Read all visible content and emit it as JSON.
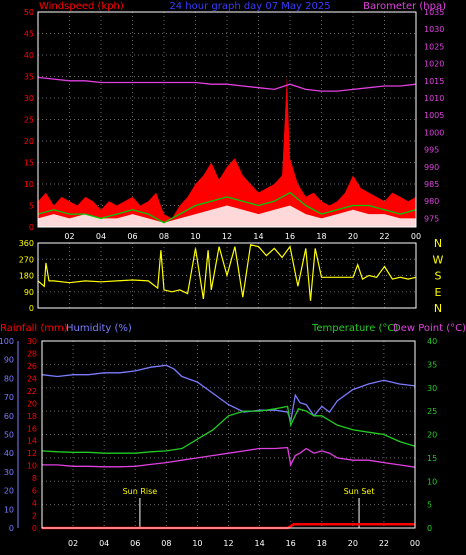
{
  "header": {
    "left_label": "Windspeed (kph)",
    "title": "24 hour graph day  07 May 2025",
    "right_label": "Barometer (hpa)"
  },
  "colors": {
    "wind": "#ff0000",
    "gust": "#ffffff",
    "avg_wind": "#00cc00",
    "barometer": "#e040e0",
    "direction": "#ffff00",
    "humidity": "#7b7bff",
    "temperature": "#22cc22",
    "dewpoint": "#e040e0",
    "rainfall": "#ff0000",
    "grid": "#666666",
    "frame": "#ffffff"
  },
  "chart_data": [
    {
      "type": "line",
      "name": "wind",
      "title": "24 hour graph day  07 May 2025",
      "ylabel": "Windspeed (kph)",
      "y2label": "Barometer (hpa)",
      "ylim": [
        0,
        50
      ],
      "yticks": [
        0,
        5,
        10,
        15,
        20,
        25,
        30,
        35,
        40,
        45,
        50
      ],
      "y2lim": [
        972.5,
        1035
      ],
      "y2ticks": [
        975,
        980,
        985,
        990,
        995,
        1000,
        1005,
        1010,
        1015,
        1020,
        1025,
        1030,
        1035
      ],
      "xlim": [
        0,
        24
      ],
      "xticks": [
        "02",
        "04",
        "06",
        "08",
        "10",
        "12",
        "14",
        "16",
        "18",
        "20",
        "22",
        "00"
      ],
      "grid": true,
      "series": [
        {
          "id": "windspeed",
          "style": "fill",
          "x": [
            0,
            0.5,
            1,
            1.5,
            2,
            2.5,
            3,
            3.5,
            4,
            4.5,
            5,
            5.5,
            6,
            6.5,
            7,
            7.5,
            8,
            8.5,
            9,
            9.5,
            10,
            10.5,
            11,
            11.5,
            12,
            12.5,
            13,
            13.5,
            14,
            14.5,
            15,
            15.5,
            15.8,
            16,
            16.5,
            17,
            17.5,
            18,
            18.5,
            19,
            19.5,
            20,
            20.5,
            21,
            21.5,
            22,
            22.5,
            23,
            23.5,
            24
          ],
          "y": [
            6,
            8,
            5,
            7,
            6,
            5,
            7,
            6,
            4,
            6,
            5,
            6,
            7,
            5,
            6,
            8,
            3,
            2,
            5,
            7,
            10,
            12,
            15,
            11,
            14,
            16,
            12,
            10,
            8,
            9,
            10,
            12,
            35,
            16,
            10,
            7,
            8,
            6,
            5,
            6,
            8,
            12,
            9,
            8,
            7,
            6,
            8,
            7,
            6,
            7
          ]
        },
        {
          "id": "gust",
          "style": "fill",
          "x": [
            0,
            1,
            2,
            3,
            4,
            5,
            6,
            7,
            8,
            9,
            10,
            11,
            12,
            13,
            14,
            15,
            16,
            17,
            18,
            19,
            20,
            21,
            22,
            23,
            24
          ],
          "y": [
            2,
            3,
            2,
            3,
            2,
            2,
            3,
            2,
            1,
            2,
            3,
            4,
            5,
            4,
            3,
            4,
            5,
            3,
            2,
            3,
            4,
            3,
            3,
            2,
            2
          ]
        },
        {
          "id": "avg_wind",
          "style": "line",
          "x": [
            0,
            1,
            2,
            3,
            4,
            5,
            6,
            7,
            8,
            9,
            10,
            11,
            12,
            13,
            14,
            15,
            16,
            17,
            18,
            19,
            20,
            21,
            22,
            23,
            24
          ],
          "y": [
            3,
            4,
            3,
            3,
            2,
            3,
            4,
            3,
            1,
            3,
            5,
            6,
            7,
            6,
            5,
            6,
            8,
            5,
            3,
            4,
            5,
            5,
            4,
            3,
            4
          ]
        },
        {
          "id": "barometer",
          "axis": "y2",
          "x": [
            0,
            1,
            2,
            3,
            4,
            5,
            6,
            7,
            8,
            9,
            10,
            11,
            12,
            13,
            14,
            15,
            16,
            17,
            18,
            19,
            20,
            21,
            22,
            23,
            24
          ],
          "y": [
            1016,
            1015.5,
            1015,
            1015,
            1014.5,
            1014.5,
            1014.5,
            1014.5,
            1014.5,
            1014.5,
            1014.5,
            1014,
            1014,
            1013.5,
            1013,
            1012.5,
            1014,
            1012.5,
            1012,
            1012,
            1012.5,
            1013,
            1013.5,
            1013.5,
            1014
          ]
        }
      ]
    },
    {
      "type": "line",
      "name": "direction",
      "yticks": [
        0,
        90,
        180,
        270,
        360
      ],
      "ylim": [
        0,
        360
      ],
      "right_labels": [
        "N",
        "W",
        "S",
        "E",
        "N"
      ],
      "xlim": [
        0,
        24
      ],
      "grid": true,
      "series": [
        {
          "id": "wind_direction",
          "x": [
            0,
            0.4,
            0.5,
            0.7,
            1,
            2,
            3,
            4,
            5,
            6,
            7,
            7.6,
            7.8,
            8,
            8.5,
            9,
            9.5,
            10,
            10.5,
            10.8,
            11,
            11.5,
            12,
            12.5,
            13,
            13.5,
            14,
            14.5,
            15,
            15.5,
            16,
            16.5,
            17,
            17.3,
            17.6,
            18,
            19,
            20,
            20.3,
            20.6,
            21,
            21.5,
            22,
            22.5,
            23,
            23.5,
            24
          ],
          "y": [
            150,
            120,
            250,
            150,
            150,
            140,
            150,
            145,
            150,
            155,
            150,
            110,
            320,
            100,
            90,
            100,
            80,
            330,
            50,
            320,
            100,
            340,
            180,
            340,
            60,
            350,
            340,
            290,
            330,
            280,
            340,
            120,
            330,
            40,
            330,
            170,
            170,
            170,
            240,
            160,
            180,
            170,
            230,
            160,
            170,
            160,
            170
          ]
        }
      ]
    },
    {
      "type": "line",
      "name": "temperature_humidity",
      "left_label": "Rainfall (mm)",
      "left2_label": "Humidity (%)",
      "right_label": "Temperature (°C)",
      "right2_label": "Dew Point (°C)",
      "rain_ticks": [
        0,
        2,
        4,
        6,
        8,
        10,
        12,
        14,
        16,
        18,
        20,
        22,
        24,
        26,
        28,
        30
      ],
      "rain_ylim": [
        0,
        30
      ],
      "humidity_ticks": [
        0,
        10,
        20,
        30,
        40,
        50,
        60,
        70,
        80,
        90,
        100
      ],
      "humidity_ylim": [
        0,
        100
      ],
      "temp_ticks": [
        0,
        5,
        10,
        15,
        20,
        25,
        30,
        35,
        40
      ],
      "temp_ylim": [
        0,
        40
      ],
      "xticks": [
        "02",
        "04",
        "06",
        "08",
        "10",
        "12",
        "14",
        "16",
        "18",
        "20",
        "22",
        "00"
      ],
      "xlim": [
        0,
        24
      ],
      "grid": true,
      "annotations": [
        {
          "text": "Sun Rise",
          "x": 6.3
        },
        {
          "text": "Sun Set",
          "x": 20.4
        }
      ],
      "series": [
        {
          "id": "humidity",
          "axis": "humidity",
          "x": [
            0,
            1,
            2,
            3,
            4,
            5,
            6,
            7,
            8,
            8.5,
            9,
            10,
            11,
            12,
            13,
            14,
            15,
            15.8,
            16,
            16.3,
            16.6,
            17,
            17.5,
            18,
            18.5,
            19,
            20,
            21,
            22,
            23,
            24
          ],
          "y": [
            82,
            81,
            82,
            82,
            83,
            83,
            84,
            86,
            87,
            85,
            81,
            78,
            72,
            66,
            62,
            63,
            63,
            62,
            57,
            71,
            67,
            66,
            60,
            65,
            62,
            68,
            74,
            77,
            79,
            77,
            76
          ]
        },
        {
          "id": "temperature",
          "axis": "temp",
          "x": [
            0,
            1,
            2,
            3,
            4,
            5,
            6,
            7,
            8,
            9,
            10,
            11,
            12,
            13,
            14,
            15,
            15.8,
            16,
            16.5,
            17,
            17.5,
            18,
            18.5,
            19,
            20,
            21,
            22,
            23,
            24
          ],
          "y": [
            16.5,
            16.3,
            16.2,
            16.2,
            16.0,
            16.0,
            16.0,
            16.3,
            16.5,
            17,
            19,
            21,
            24,
            25,
            25,
            25.5,
            26,
            22,
            25.5,
            25,
            24,
            24,
            23,
            22,
            21,
            20.5,
            20,
            18.5,
            17.5
          ]
        },
        {
          "id": "dewpoint",
          "axis": "temp",
          "x": [
            0,
            1,
            2,
            3,
            4,
            5,
            6,
            7,
            8,
            9,
            10,
            11,
            12,
            13,
            14,
            15,
            15.8,
            16,
            16.3,
            16.6,
            17,
            17.5,
            18,
            18.5,
            19,
            20,
            21,
            22,
            23,
            24
          ],
          "y": [
            13.5,
            13.5,
            13.2,
            13.2,
            13.1,
            13.1,
            13.2,
            13.6,
            14,
            14.5,
            15,
            15.5,
            16,
            16.5,
            17,
            17,
            17.2,
            13.5,
            15.5,
            16,
            17,
            16,
            16.5,
            16,
            15,
            14.5,
            14.5,
            14,
            13.5,
            13
          ]
        },
        {
          "id": "rainfall",
          "axis": "rain",
          "x": [
            0,
            15.8,
            16.2,
            24
          ],
          "y": [
            0,
            0,
            0.6,
            0.6
          ]
        }
      ]
    }
  ]
}
